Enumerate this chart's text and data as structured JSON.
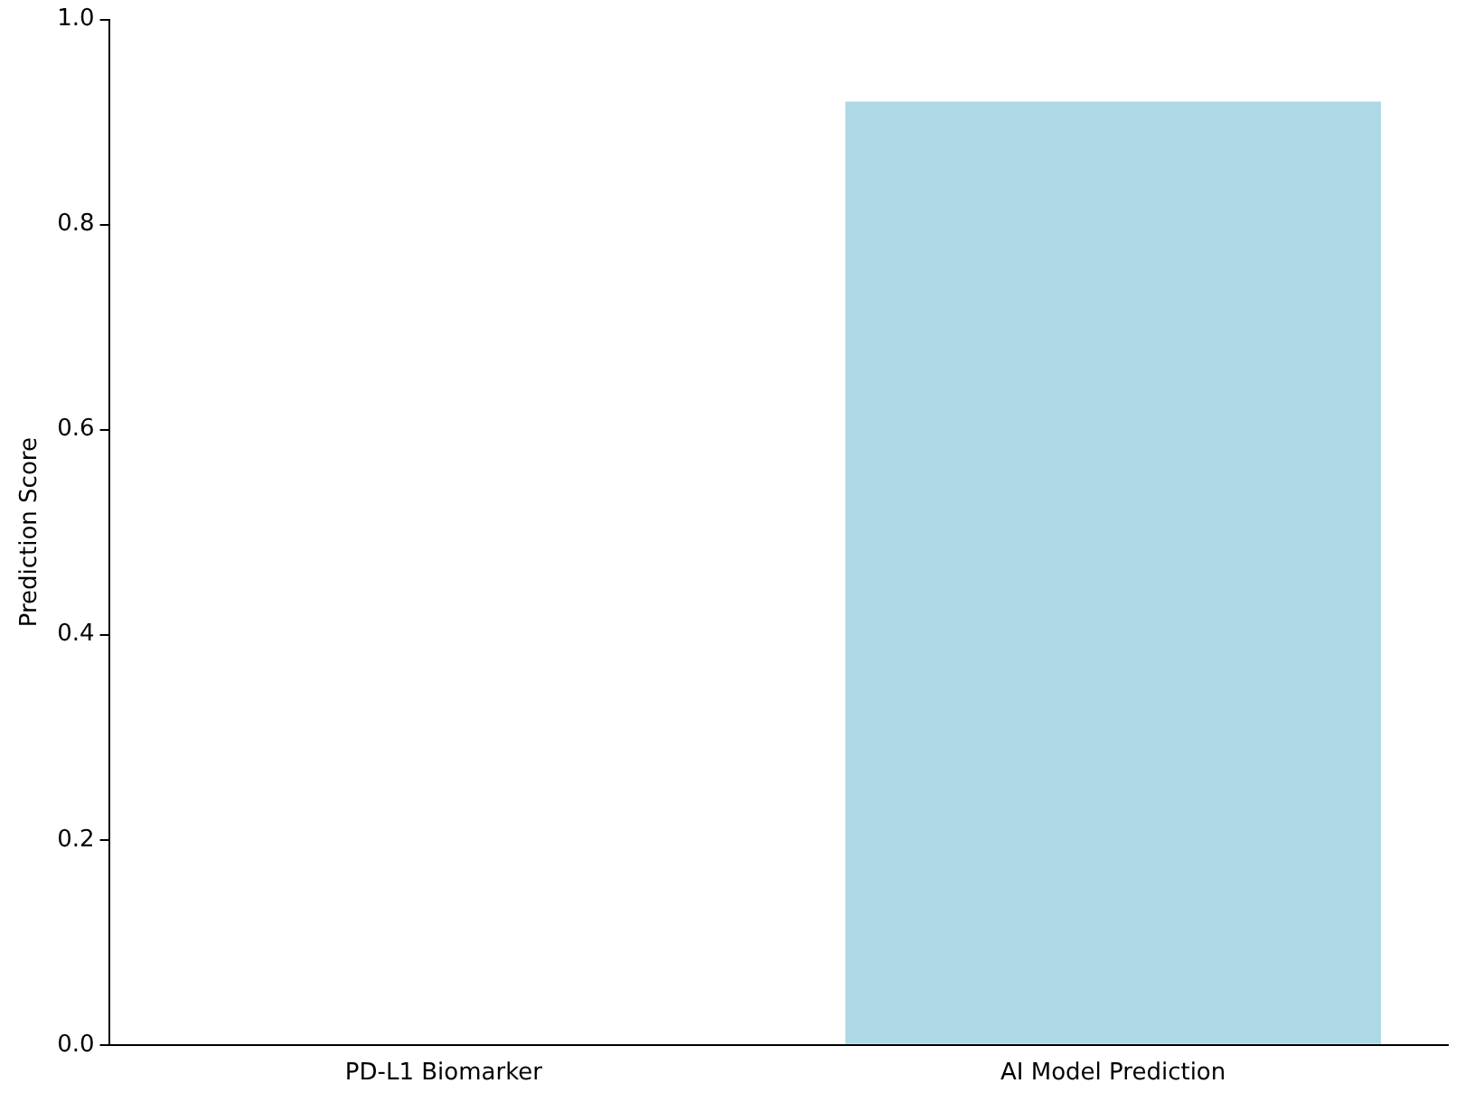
{
  "chart_data": {
    "type": "bar",
    "ylabel": "Prediction Score",
    "categories": [
      "PD-L1 Biomarker",
      "AI Model Prediction"
    ],
    "values": [
      0,
      0.92
    ],
    "colors": [
      "#add8e6",
      "#add8e6"
    ],
    "ylim": [
      0,
      1
    ],
    "yticks": [
      {
        "value": 0,
        "label": "0.0"
      },
      {
        "value": 0.2,
        "label": "0.2"
      },
      {
        "value": 0.4,
        "label": "0.4"
      },
      {
        "value": 0.6,
        "label": "0.6"
      },
      {
        "value": 0.8,
        "label": "0.8"
      },
      {
        "value": 1,
        "label": "1.0"
      }
    ],
    "grid": false,
    "legend": false
  }
}
